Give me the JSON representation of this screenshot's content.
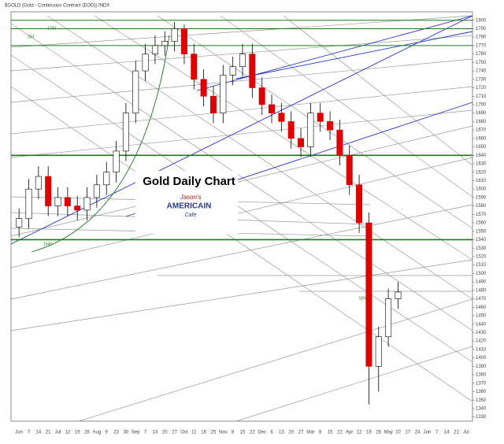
{
  "chart_data": {
    "type": "candlestick",
    "header": "$GOLD (Gold - Continuous Contract (EOD)) INDX",
    "title": "Gold Daily Chart",
    "logo": [
      "Jason's",
      "AMERICAIN",
      "Cafe"
    ],
    "annotations": [
      "1700",
      "250",
      "1540",
      "50%"
    ],
    "categories": [
      "Jun",
      "7",
      "14",
      "21",
      "Jul",
      "12",
      "19",
      "26",
      "Aug",
      "9",
      "23",
      "30",
      "Sep",
      "7",
      "13",
      "20",
      "27",
      "Oct",
      "11",
      "18",
      "25",
      "Nov",
      "8",
      "15",
      "22",
      "Dec",
      "6",
      "13",
      "20",
      "27",
      "Mar",
      "8",
      "15",
      "22",
      "Apr",
      "12",
      "19",
      "26",
      "May",
      "10",
      "17",
      "24",
      "Jun",
      "7",
      "14",
      "21",
      "Jul"
    ],
    "open": [
      1555,
      1565,
      1600,
      1615,
      1580,
      1590,
      1580,
      1575,
      1590,
      1605,
      1620,
      1645,
      1690,
      1740,
      1760,
      1770,
      1775,
      1790,
      1760,
      1730,
      1710,
      1690,
      1735,
      1745,
      1760,
      1720,
      1700,
      1690,
      1680,
      1660,
      1650,
      1690,
      1680,
      1670,
      1640,
      1605,
      1560,
      1390,
      1425,
      1470,
      null,
      null,
      null,
      null,
      null,
      null,
      null
    ],
    "high": [
      1577,
      1612,
      1627,
      1627,
      1602,
      1602,
      1592,
      1602,
      1617,
      1632,
      1657,
      1702,
      1752,
      1772,
      1782,
      1787,
      1798,
      1795,
      1772,
      1742,
      1722,
      1747,
      1757,
      1772,
      1772,
      1732,
      1712,
      1702,
      1692,
      1672,
      1702,
      1702,
      1692,
      1682,
      1652,
      1617,
      1572,
      1437,
      1482,
      1490,
      null,
      null,
      null,
      null,
      null,
      null,
      null
    ],
    "low": [
      1543,
      1553,
      1588,
      1568,
      1568,
      1568,
      1563,
      1563,
      1578,
      1593,
      1608,
      1633,
      1678,
      1728,
      1748,
      1758,
      1763,
      1748,
      1718,
      1698,
      1678,
      1678,
      1723,
      1733,
      1708,
      1688,
      1678,
      1668,
      1648,
      1638,
      1638,
      1668,
      1658,
      1628,
      1593,
      1548,
      1345,
      1360,
      1413,
      1458,
      null,
      null,
      null,
      null,
      null,
      null,
      null
    ],
    "close": [
      1565,
      1600,
      1615,
      1580,
      1590,
      1580,
      1575,
      1590,
      1605,
      1620,
      1645,
      1690,
      1740,
      1760,
      1770,
      1775,
      1790,
      1760,
      1730,
      1710,
      1690,
      1735,
      1745,
      1760,
      1720,
      1700,
      1690,
      1680,
      1660,
      1650,
      1690,
      1680,
      1670,
      1640,
      1605,
      1560,
      1390,
      1425,
      1470,
      1478,
      null,
      null,
      null,
      null,
      null,
      null,
      null
    ],
    "up_color": "#ffffff",
    "down_color": "#e00000",
    "levels": [
      1800,
      1790,
      1770,
      1640,
      1540
    ],
    "level_color": "#1a7a1a",
    "ylim": [
      1325,
      1810
    ],
    "yticks": [
      1330,
      1340,
      1350,
      1360,
      1370,
      1380,
      1390,
      1400,
      1410,
      1420,
      1430,
      1440,
      1450,
      1460,
      1470,
      1480,
      1490,
      1500,
      1510,
      1520,
      1530,
      1540,
      1550,
      1560,
      1570,
      1580,
      1590,
      1600,
      1610,
      1620,
      1630,
      1640,
      1650,
      1660,
      1670,
      1680,
      1690,
      1700,
      1710,
      1720,
      1730,
      1740,
      1750,
      1760,
      1770,
      1780,
      1790,
      1800
    ]
  }
}
